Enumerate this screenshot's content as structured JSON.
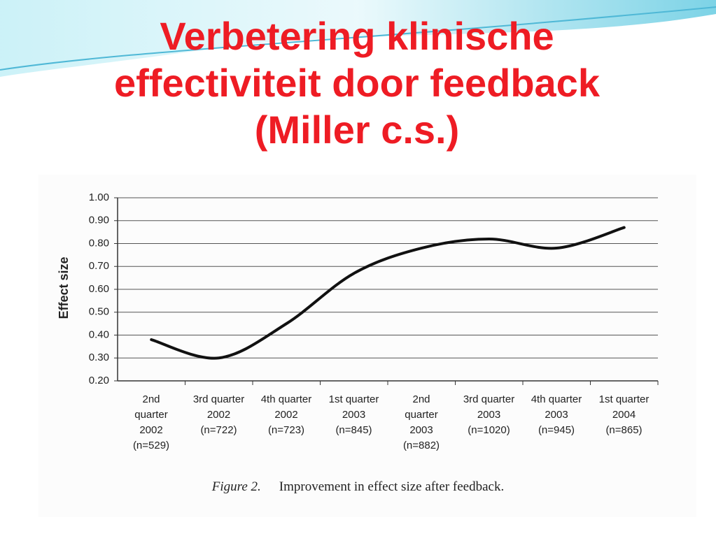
{
  "chart_data": {
    "type": "line",
    "title": "Verbetering klinische\neffectiviteit door feedback\n(Miller c.s.)",
    "y_label": "Effect size",
    "figure_label": "Figure 2.",
    "caption": "Improvement in effect size after feedback.",
    "categories": [
      "2nd\nquarter\n2002\n(n=529)",
      "3rd quarter\n2002\n(n=722)",
      "4th quarter\n2002\n(n=723)",
      "1st quarter\n2003\n(n=845)",
      "2nd\nquarter\n2003\n(n=882)",
      "3rd quarter\n2003\n(n=1020)",
      "4th quarter\n2003\n(n=945)",
      "1st quarter\n2004\n(n=865)"
    ],
    "values": [
      0.38,
      0.3,
      0.45,
      0.67,
      0.78,
      0.82,
      0.78,
      0.87
    ],
    "color": "#111111",
    "ylim": [
      0.2,
      1.0
    ],
    "yticks": [
      {
        "value": 0.2,
        "label": "0.20"
      },
      {
        "value": 0.3,
        "label": "0.30"
      },
      {
        "value": 0.4,
        "label": "0.40"
      },
      {
        "value": 0.5,
        "label": "0.50"
      },
      {
        "value": 0.6,
        "label": "0.60"
      },
      {
        "value": 0.7,
        "label": "0.70"
      },
      {
        "value": 0.8,
        "label": "0.80"
      },
      {
        "value": 0.9,
        "label": "0.90"
      },
      {
        "value": 1.0,
        "label": "1.00"
      }
    ],
    "grid": true
  }
}
